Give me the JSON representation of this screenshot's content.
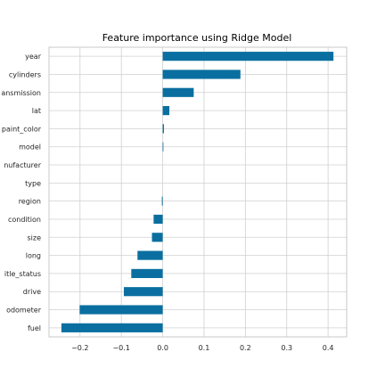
{
  "chart_data": {
    "type": "bar",
    "orientation": "horizontal",
    "title": "Feature importance using Ridge Model",
    "xlabel": "",
    "ylabel": "",
    "categories": [
      "year",
      "cylinders",
      "ansmission",
      "lat",
      "paint_color",
      "model",
      "nufacturer",
      "type",
      "region",
      "condition",
      "size",
      "long",
      "itle_status",
      "drive",
      "odometer",
      "fuel"
    ],
    "values": [
      0.413,
      0.188,
      0.075,
      0.016,
      0.003,
      0.001,
      0.0,
      0.0,
      -0.002,
      -0.022,
      -0.026,
      -0.061,
      -0.076,
      -0.094,
      -0.201,
      -0.245
    ],
    "xticks": [
      "−0.2",
      "−0.1",
      "0.0",
      "0.1",
      "0.2",
      "0.3",
      "0.4"
    ],
    "xtick_values": [
      -0.2,
      -0.1,
      0.0,
      0.1,
      0.2,
      0.3,
      0.4
    ],
    "xlim": [
      -0.275,
      0.445
    ],
    "grid": true,
    "bar_color": "#0a6fa0"
  }
}
